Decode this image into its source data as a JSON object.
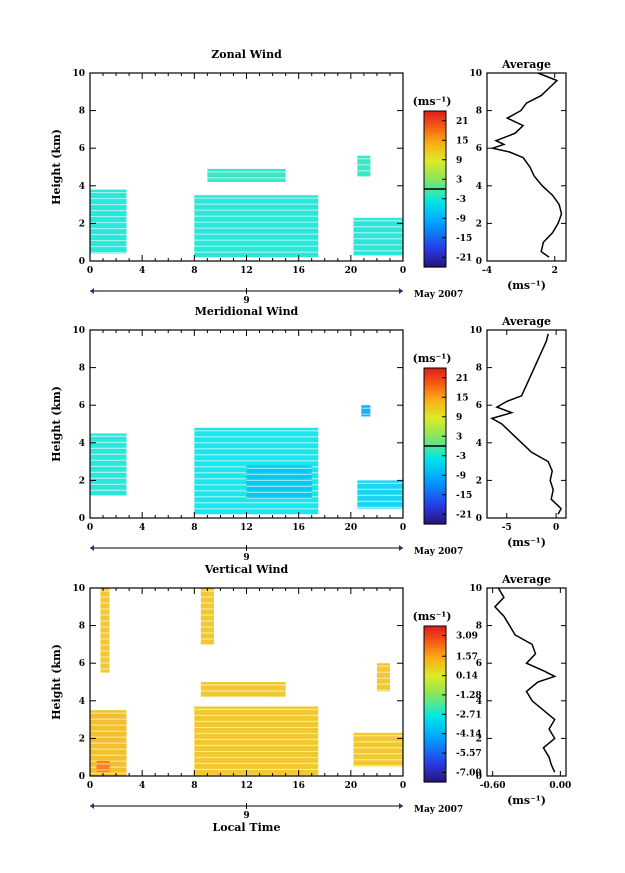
{
  "chart_data": [
    {
      "type": "heatmap",
      "title": "Zonal Wind",
      "ylabel": "Height (km)",
      "ylim": [
        0,
        10
      ],
      "y_ticks": [
        "0",
        "2",
        "4",
        "6",
        "8",
        "10"
      ],
      "x_ticks": [
        "0",
        "4",
        "8",
        "12",
        "16",
        "20",
        "0"
      ],
      "date_label": "9",
      "date_suffix": "May 2007",
      "colorbar_unit": "(ms⁻¹)",
      "colorbar_ticks": [
        "21",
        "15",
        "9",
        "3",
        "-3",
        "-9",
        "-15",
        "-21"
      ],
      "colorbar_range": [
        -24,
        24
      ],
      "colorbar_contour": 0,
      "blocks": [
        {
          "x": [
            0,
            2.8
          ],
          "y": [
            0.4,
            3.8
          ],
          "value": -3
        },
        {
          "x": [
            8,
            17.5
          ],
          "y": [
            0.2,
            3.5
          ],
          "value": -3
        },
        {
          "x": [
            9,
            15
          ],
          "y": [
            4.2,
            4.9
          ],
          "value": -2
        },
        {
          "x": [
            20.2,
            24
          ],
          "y": [
            0.3,
            2.3
          ],
          "value": -3
        },
        {
          "x": [
            20.5,
            21.5
          ],
          "y": [
            4.5,
            5.6
          ],
          "value": -2
        }
      ],
      "average": {
        "title": "Average",
        "xlim": [
          -4,
          3
        ],
        "x_ticks": [
          "-4",
          "2"
        ],
        "unit": "(ms⁻¹)",
        "height": [
          0.2,
          0.5,
          1.0,
          1.5,
          2.0,
          2.5,
          3.0,
          3.5,
          4.0,
          4.5,
          5.0,
          5.5,
          5.8,
          6.0,
          6.2,
          6.4,
          6.8,
          7.2,
          7.6,
          8.0,
          8.4,
          8.8,
          9.2,
          9.6,
          10.0
        ],
        "value": [
          1.5,
          0.8,
          1.0,
          1.8,
          2.3,
          2.6,
          2.4,
          1.8,
          0.9,
          0.2,
          -0.2,
          -0.8,
          -2.0,
          -3.5,
          -2.5,
          -3.2,
          -1.5,
          -0.8,
          -2.2,
          -1.0,
          -0.5,
          0.8,
          1.5,
          2.2,
          0.5
        ]
      }
    },
    {
      "type": "heatmap",
      "title": "Meridional Wind",
      "ylabel": "Height (km)",
      "ylim": [
        0,
        10
      ],
      "y_ticks": [
        "0",
        "2",
        "4",
        "6",
        "8",
        "10"
      ],
      "x_ticks": [
        "0",
        "4",
        "8",
        "12",
        "16",
        "20",
        "0"
      ],
      "date_label": "9",
      "date_suffix": "May 2007",
      "colorbar_unit": "(ms⁻¹)",
      "colorbar_ticks": [
        "21",
        "15",
        "9",
        "3",
        "-3",
        "-9",
        "-15",
        "-21"
      ],
      "colorbar_range": [
        -24,
        24
      ],
      "colorbar_contour": 0,
      "blocks": [
        {
          "x": [
            0,
            2.8
          ],
          "y": [
            1.2,
            4.5
          ],
          "value": -3
        },
        {
          "x": [
            8,
            17.5
          ],
          "y": [
            0.2,
            4.8
          ],
          "value": -4
        },
        {
          "x": [
            12,
            17
          ],
          "y": [
            1,
            2.8
          ],
          "value": -7
        },
        {
          "x": [
            20.5,
            24
          ],
          "y": [
            0.5,
            2.0
          ],
          "value": -6
        },
        {
          "x": [
            20.8,
            21.5
          ],
          "y": [
            5.4,
            6.0
          ],
          "value": -10
        }
      ],
      "average": {
        "title": "Average",
        "xlim": [
          -7,
          1
        ],
        "x_ticks": [
          "-5",
          "0"
        ],
        "unit": "(ms⁻¹)",
        "height": [
          0.2,
          0.5,
          1.0,
          1.5,
          2.0,
          2.5,
          3.0,
          3.5,
          4.0,
          4.5,
          5.0,
          5.3,
          5.6,
          5.9,
          6.2,
          6.5,
          9.4,
          9.8
        ],
        "value": [
          0.2,
          0.5,
          -0.5,
          -0.3,
          -0.6,
          -0.4,
          -0.8,
          -2.5,
          -3.5,
          -4.5,
          -5.5,
          -6.5,
          -4.5,
          -6.0,
          -5.0,
          -3.5,
          -1.0,
          -0.8
        ]
      }
    },
    {
      "type": "heatmap",
      "title": "Vertical Wind",
      "ylabel": "Height (km)",
      "xlabel": "Local Time",
      "ylim": [
        0,
        10
      ],
      "y_ticks": [
        "0",
        "2",
        "4",
        "6",
        "8",
        "10"
      ],
      "x_ticks": [
        "0",
        "4",
        "8",
        "12",
        "16",
        "20",
        "0"
      ],
      "date_label": "9",
      "date_suffix": "May 2007",
      "colorbar_unit": "(ms⁻¹)",
      "colorbar_ticks": [
        "3.09",
        "1.57",
        "0.14",
        "-1.28",
        "-2.71",
        "-4.14",
        "-5.57",
        "-7.00"
      ],
      "colorbar_range": [
        -7.7,
        3.8
      ],
      "colorbar_contour": null,
      "blocks": [
        {
          "x": [
            0,
            2.8
          ],
          "y": [
            0.0,
            3.5
          ],
          "value": 1.2
        },
        {
          "x": [
            0.5,
            1.5
          ],
          "y": [
            0.2,
            0.8
          ],
          "value": 2.2
        },
        {
          "x": [
            0.8,
            1.5
          ],
          "y": [
            5.5,
            10.0
          ],
          "value": 1.0
        },
        {
          "x": [
            8,
            17.5
          ],
          "y": [
            0.0,
            3.7
          ],
          "value": 1.0
        },
        {
          "x": [
            8.5,
            15
          ],
          "y": [
            4.2,
            5.0
          ],
          "value": 1.0
        },
        {
          "x": [
            8.5,
            9.5
          ],
          "y": [
            7.0,
            10.0
          ],
          "value": 1.0
        },
        {
          "x": [
            20.2,
            24
          ],
          "y": [
            0.5,
            2.3
          ],
          "value": 1.0
        },
        {
          "x": [
            22,
            23
          ],
          "y": [
            4.5,
            6.0
          ],
          "value": 1.0
        }
      ],
      "average": {
        "title": "Average",
        "xlim": [
          -0.65,
          0.05
        ],
        "x_ticks": [
          "-0.60",
          "0.00"
        ],
        "unit": "(ms⁻¹)",
        "height": [
          0.2,
          0.6,
          1.0,
          1.5,
          2.0,
          2.5,
          3.0,
          3.5,
          4.0,
          4.5,
          5.0,
          5.3,
          5.6,
          6.0,
          6.5,
          7.0,
          7.5,
          8.0,
          8.5,
          9.0,
          9.5,
          10.0
        ],
        "value": [
          -0.05,
          -0.08,
          -0.1,
          -0.15,
          -0.05,
          -0.1,
          -0.05,
          -0.15,
          -0.25,
          -0.3,
          -0.2,
          -0.05,
          -0.15,
          -0.3,
          -0.22,
          -0.25,
          -0.4,
          -0.45,
          -0.5,
          -0.58,
          -0.5,
          -0.55
        ]
      }
    }
  ]
}
